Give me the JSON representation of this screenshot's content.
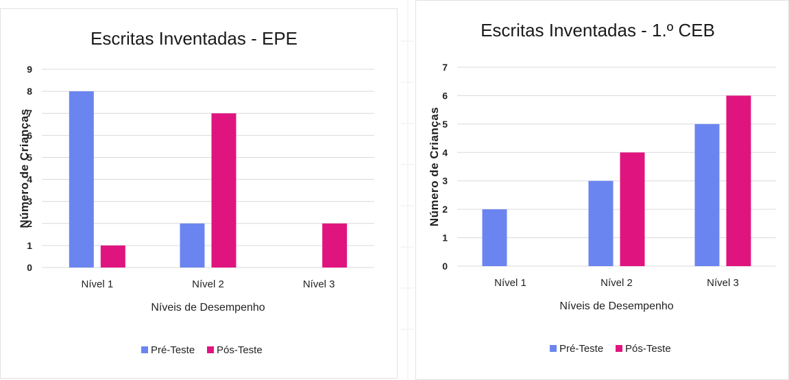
{
  "colors": {
    "pre": "#6b85f0",
    "pos": "#e0147f"
  },
  "chart_data": [
    {
      "type": "bar",
      "title": "Escritas Inventadas   - EPE",
      "xlabel": "Níveis de Desempenho",
      "ylabel": "Número de Crianças",
      "categories": [
        "Nível 1",
        "Nível 2",
        "Nível 3"
      ],
      "ylim": [
        0,
        9
      ],
      "yticks": [
        "0",
        "1",
        "2",
        "3",
        "4",
        "5",
        "6",
        "7",
        "8",
        "9"
      ],
      "grid": true,
      "legend_position": "bottom",
      "series": [
        {
          "name": "Pré-Teste",
          "values": [
            8,
            2,
            0
          ]
        },
        {
          "name": "Pós-Teste",
          "values": [
            1,
            7,
            2
          ]
        }
      ]
    },
    {
      "type": "bar",
      "title": "Escritas Inventadas   - 1.º CEB",
      "xlabel": "Níveis de Desempenho",
      "ylabel": "Número de Crianças",
      "categories": [
        "Nível 1",
        "Nível 2",
        "Nível 3"
      ],
      "ylim": [
        0,
        7
      ],
      "yticks": [
        "0",
        "1",
        "2",
        "3",
        "4",
        "5",
        "6",
        "7"
      ],
      "grid": true,
      "legend_position": "bottom",
      "series": [
        {
          "name": "Pré-Teste",
          "values": [
            2,
            3,
            5
          ]
        },
        {
          "name": "Pós-Teste",
          "values": [
            0,
            4,
            6
          ]
        }
      ]
    }
  ]
}
